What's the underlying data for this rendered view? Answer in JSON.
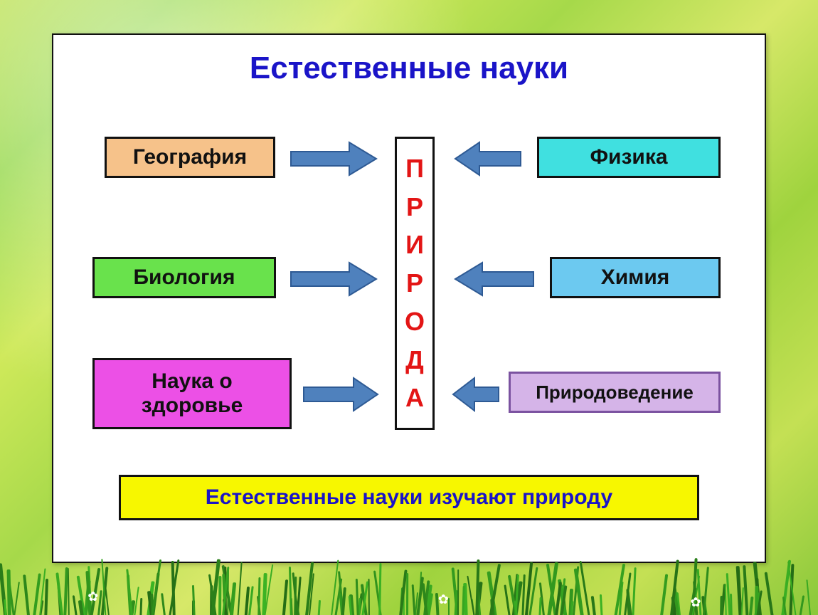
{
  "title": {
    "text": "Естественные науки",
    "color": "#1a14c8",
    "fontsize": 44
  },
  "center": {
    "letters": [
      "П",
      "Р",
      "И",
      "Р",
      "О",
      "Д",
      "А"
    ],
    "color": "#e31515",
    "fontsize": 36
  },
  "boxes": {
    "geography": {
      "label": "География",
      "bg": "#f6c28a",
      "border": "#111111",
      "fontsize": 30
    },
    "biology": {
      "label": "Биология",
      "bg": "#69e24c",
      "border": "#111111",
      "fontsize": 30
    },
    "health": {
      "label": "Наука о здоровье",
      "bg": "#ec50e6",
      "border": "#111111",
      "fontsize": 30
    },
    "physics": {
      "label": "Физика",
      "bg": "#40e0e0",
      "border": "#111111",
      "fontsize": 30
    },
    "chemistry": {
      "label": "Химия",
      "bg": "#6cc9f0",
      "border": "#111111",
      "fontsize": 30
    },
    "natstudy": {
      "label": "Природоведение",
      "bg": "#d5b4e8",
      "border": "#7b52a0",
      "fontsize": 26
    }
  },
  "arrow": {
    "fill": "#4f81bd",
    "stroke": "#2e5a94"
  },
  "footer": {
    "text": "Естественные науки изучают природу",
    "bg": "#f7f700",
    "color": "#1a14c8",
    "fontsize": 30
  },
  "panel": {
    "bg": "#ffffff"
  }
}
